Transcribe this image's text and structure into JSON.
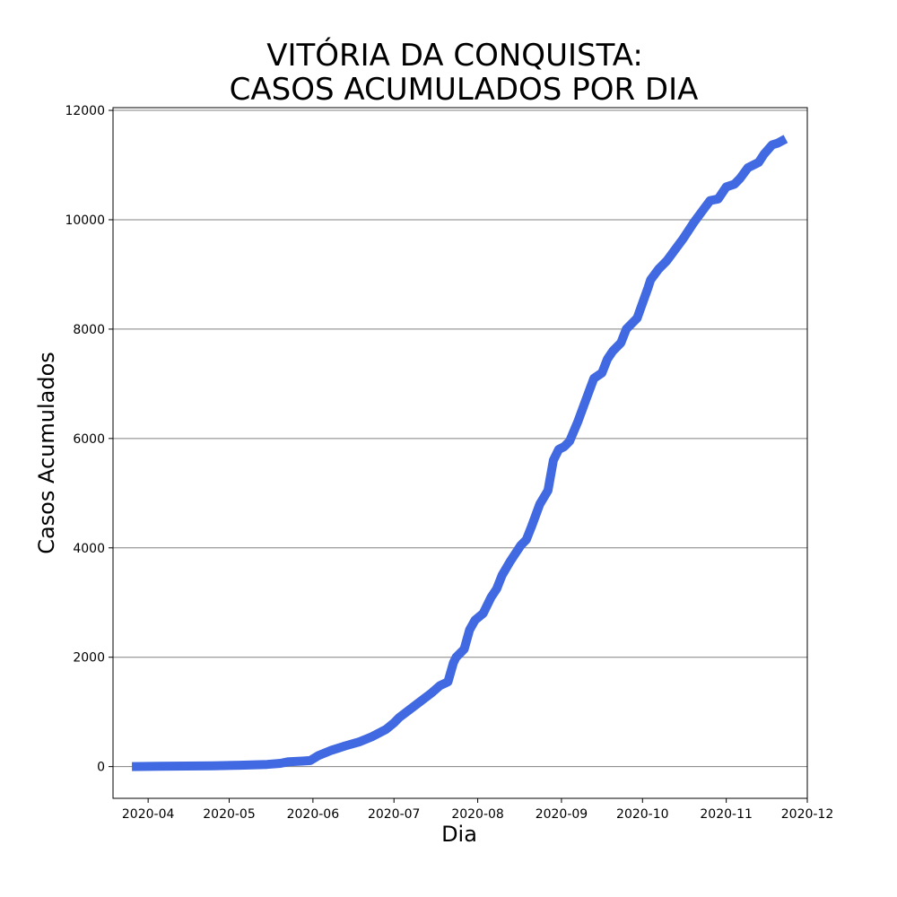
{
  "chart_data": {
    "type": "line",
    "title_lines": [
      "VITÓRIA DA CONQUISTA:",
      "CASOS ACUMULADOS POR DIA"
    ],
    "xlabel": "Dia",
    "ylabel": "Casos Acumulados",
    "xlim": [
      "2020-03-19",
      "2020-12-01"
    ],
    "ylim": [
      -580,
      12050
    ],
    "x_ticks": [
      "2020-04-01",
      "2020-05-01",
      "2020-06-01",
      "2020-07-01",
      "2020-08-01",
      "2020-09-01",
      "2020-10-01",
      "2020-11-01",
      "2020-12-01"
    ],
    "x_tick_labels": [
      "2020-04",
      "2020-05",
      "2020-06",
      "2020-07",
      "2020-08",
      "2020-09",
      "2020-10",
      "2020-11",
      "2020-12"
    ],
    "y_ticks": [
      0,
      2000,
      4000,
      6000,
      8000,
      10000,
      12000
    ],
    "y_tick_labels": [
      "0",
      "2000",
      "4000",
      "6000",
      "8000",
      "10000",
      "12000"
    ],
    "grid": "horizontal",
    "line_color": "#4169e1",
    "series": [
      {
        "x": [
          "2020-03-26",
          "2020-04-05",
          "2020-04-15",
          "2020-04-25",
          "2020-05-05",
          "2020-05-15",
          "2020-05-20",
          "2020-05-23",
          "2020-05-28",
          "2020-05-31",
          "2020-06-03",
          "2020-06-08",
          "2020-06-13",
          "2020-06-18",
          "2020-06-23",
          "2020-06-28",
          "2020-07-01",
          "2020-07-03",
          "2020-07-07",
          "2020-07-11",
          "2020-07-15",
          "2020-07-18",
          "2020-07-21",
          "2020-07-23",
          "2020-07-24",
          "2020-07-27",
          "2020-07-29",
          "2020-07-31",
          "2020-08-03",
          "2020-08-06",
          "2020-08-08",
          "2020-08-10",
          "2020-08-13",
          "2020-08-15",
          "2020-08-17",
          "2020-08-19",
          "2020-08-21",
          "2020-08-24",
          "2020-08-27",
          "2020-08-29",
          "2020-08-31",
          "2020-09-02",
          "2020-09-04",
          "2020-09-07",
          "2020-09-10",
          "2020-09-13",
          "2020-09-16",
          "2020-09-18",
          "2020-09-20",
          "2020-09-23",
          "2020-09-25",
          "2020-09-29",
          "2020-10-03",
          "2020-10-04",
          "2020-10-07",
          "2020-10-10",
          "2020-10-13",
          "2020-10-16",
          "2020-10-20",
          "2020-10-23",
          "2020-10-26",
          "2020-10-29",
          "2020-11-01",
          "2020-11-04",
          "2020-11-06",
          "2020-11-09",
          "2020-11-11",
          "2020-11-13",
          "2020-11-15",
          "2020-11-18",
          "2020-11-20",
          "2020-11-23"
        ],
        "y": [
          0,
          5,
          10,
          15,
          25,
          40,
          60,
          90,
          100,
          110,
          200,
          300,
          380,
          450,
          550,
          680,
          800,
          900,
          1050,
          1200,
          1350,
          1480,
          1550,
          1900,
          2000,
          2150,
          2500,
          2680,
          2800,
          3100,
          3250,
          3500,
          3750,
          3900,
          4050,
          4150,
          4400,
          4800,
          5050,
          5600,
          5800,
          5850,
          5950,
          6300,
          6700,
          7100,
          7200,
          7450,
          7600,
          7750,
          8000,
          8200,
          8750,
          8900,
          9100,
          9250,
          9450,
          9650,
          9950,
          10150,
          10350,
          10380,
          10600,
          10650,
          10750,
          10950,
          11000,
          11050,
          11200,
          11370,
          11400,
          11480
        ]
      }
    ]
  }
}
